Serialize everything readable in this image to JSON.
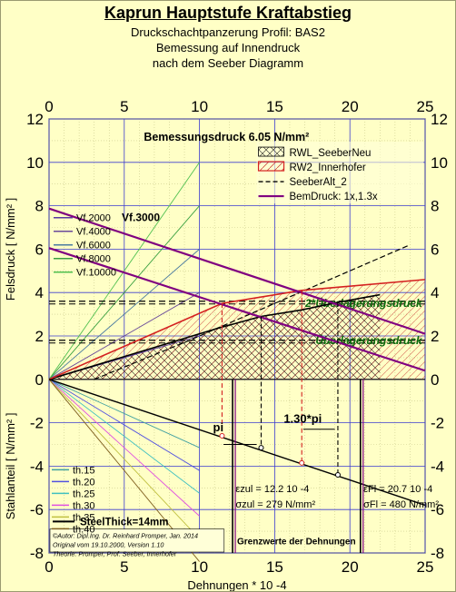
{
  "chart_data": {
    "type": "line",
    "title": "Kaprun Hauptstufe Kraftabstieg",
    "subtitle_lines": [
      "Druckschachtpanzerung Profil: BAS2",
      "Bemessung auf Innendruck",
      "nach dem Seeber Diagramm"
    ],
    "xlabel": "Dehnungen * 10 -4",
    "ylabel_top": "Felsdruck [ N/mm² ]",
    "ylabel_bottom": "Stahlanteil [ N/mm² ]",
    "xlim": [
      0,
      25
    ],
    "ylim": [
      -8,
      12
    ],
    "x_ticks": [
      0,
      5,
      10,
      15,
      20,
      25
    ],
    "y_ticks": [
      -8,
      -6,
      -4,
      -2,
      0,
      2,
      4,
      6,
      8,
      10,
      12
    ],
    "grid": true,
    "colors": {
      "background": "#ffffc6",
      "grid": "#3c3ccf",
      "minor_grid": "#c9c98a",
      "rwl": "#000000",
      "rw2": "#d42020",
      "bemdruck": "#800080",
      "steel": "#000000",
      "dashed": "#000000",
      "label_green": "#0b6b0b"
    },
    "bemessungsdruck_label": "Bemessungsdruck 6.05 N/mm²",
    "legend": {
      "placement": "top-right",
      "items": [
        {
          "label": "RWL_SeeberNeu",
          "style": "hatch"
        },
        {
          "label": "RW2_Innerhofer",
          "style": "red-hatch"
        },
        {
          "label": "SeeberAlt_2",
          "style": "dashed"
        },
        {
          "label": "BemDruck: 1x,1.3x",
          "style": "purple-line"
        }
      ]
    },
    "rock_modulus_series": [
      {
        "name": "Vf.2000",
        "slope": 0.2,
        "color": "#5a3aa0"
      },
      {
        "name": "Vf.4000",
        "slope": 0.4,
        "color": "#6a4a9a"
      },
      {
        "name": "Vf.6000",
        "slope": 0.6,
        "color": "#4a7aa0"
      },
      {
        "name": "Vf.8000",
        "slope": 0.8,
        "color": "#3aa040"
      },
      {
        "name": "Vf.10000",
        "slope": 1.0,
        "color": "#50c050"
      }
    ],
    "vf_highlight": "Vf.3000",
    "steel_thickness_series": [
      {
        "name": "th.15",
        "slope": -0.315,
        "color": "#40a0a0"
      },
      {
        "name": "th.20",
        "slope": -0.42,
        "color": "#5050e0"
      },
      {
        "name": "th.25",
        "slope": -0.525,
        "color": "#40c0c0"
      },
      {
        "name": "th.30",
        "slope": -0.63,
        "color": "#e050e0"
      },
      {
        "name": "th.35",
        "slope": -0.735,
        "color": "#c0c040"
      },
      {
        "name": "th.40",
        "slope": -0.84,
        "color": "#806020"
      }
    ],
    "steel_thick_label": "SteelThick=14mm",
    "steel_line": {
      "x": [
        0,
        25
      ],
      "y": [
        0,
        -5.8
      ]
    },
    "bemdruck_lines": [
      {
        "x": [
          0,
          25
        ],
        "y": [
          6.05,
          0.4
        ]
      },
      {
        "x": [
          0,
          25
        ],
        "y": [
          7.87,
          2.1
        ]
      }
    ],
    "overburden_lines": [
      {
        "label": "Überlagerungsdruck",
        "y": 1.8
      },
      {
        "label": "2*Überlagerungsdruck",
        "y": 3.6
      }
    ],
    "rwl_curve": {
      "x": [
        0,
        11.2,
        14.1,
        16.8,
        19.2,
        22
      ],
      "y": [
        0,
        2.35,
        2.9,
        3.2,
        3.55,
        3.9
      ]
    },
    "rw2_curve": {
      "x": [
        0,
        11.5,
        16.8,
        25
      ],
      "y": [
        0,
        3.5,
        4.1,
        4.6
      ]
    },
    "seeber_alt_curve": {
      "x": [
        3.0,
        9.0,
        15.0,
        21.0,
        24.0
      ],
      "y": [
        0.0,
        1.7,
        3.5,
        5.3,
        6.2
      ]
    },
    "pi_label": "pi",
    "pi13_label": "1.30*pi",
    "markers": [
      {
        "x": 11.5,
        "y": -2.6
      },
      {
        "x": 14.1,
        "y": -3.15
      },
      {
        "x": 16.8,
        "y": -3.85
      },
      {
        "x": 19.2,
        "y": -4.4
      }
    ],
    "vertical_limits": [
      12.2,
      20.7
    ],
    "eps_zul": "12.2 10 -4",
    "sigma_zul": "279 N/mm²",
    "eps_fl": "20.7 10 -4",
    "sigma_fl": "480 N/mm²",
    "grenz_label": "Grenzwerte der Dehnungen",
    "author_lines": [
      "©Autor: Dipl.Ing. Dr. Reinhard Promper, Jan. 2014",
      "Original vom 19.10.2000, Version 1.10",
      "Theorie: Promper, Prof. Seeber, Innerhofer"
    ]
  }
}
